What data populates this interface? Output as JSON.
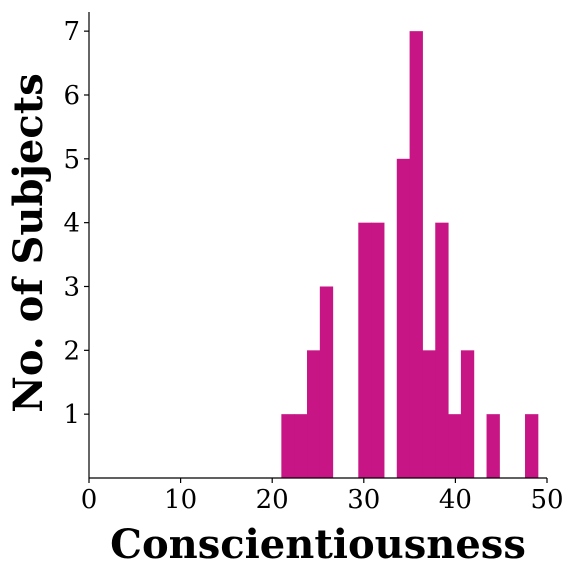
{
  "chart_data": {
    "type": "bar",
    "title": "",
    "xlabel": "Conscientiousness",
    "ylabel": "No. of Subjects",
    "xlim": [
      0,
      50
    ],
    "ylim": [
      0,
      7.3
    ],
    "x_ticks": [
      0,
      10,
      20,
      30,
      40,
      50
    ],
    "y_ticks": [
      1,
      2,
      3,
      4,
      5,
      6,
      7
    ],
    "bar_color": "#c71585",
    "grid": false,
    "bins": [
      {
        "x0": 21.0,
        "x1": 22.4,
        "count": 1
      },
      {
        "x0": 22.4,
        "x1": 23.8,
        "count": 1
      },
      {
        "x0": 23.8,
        "x1": 25.2,
        "count": 2
      },
      {
        "x0": 25.2,
        "x1": 26.6,
        "count": 3
      },
      {
        "x0": 29.4,
        "x1": 30.8,
        "count": 4
      },
      {
        "x0": 30.8,
        "x1": 32.2,
        "count": 4
      },
      {
        "x0": 33.6,
        "x1": 35.0,
        "count": 5
      },
      {
        "x0": 35.0,
        "x1": 36.4,
        "count": 7
      },
      {
        "x0": 36.4,
        "x1": 37.8,
        "count": 2
      },
      {
        "x0": 37.8,
        "x1": 39.2,
        "count": 4
      },
      {
        "x0": 39.2,
        "x1": 40.6,
        "count": 1
      },
      {
        "x0": 40.6,
        "x1": 42.0,
        "count": 2
      },
      {
        "x0": 43.4,
        "x1": 44.8,
        "count": 1
      },
      {
        "x0": 47.6,
        "x1": 49.0,
        "count": 1
      }
    ]
  }
}
